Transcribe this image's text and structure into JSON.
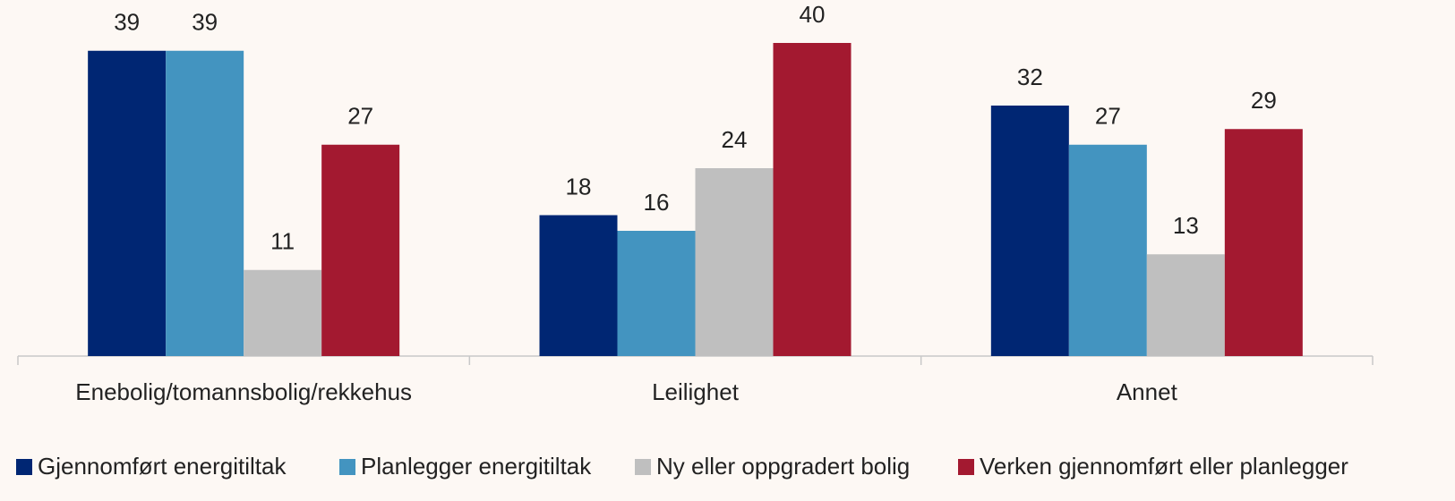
{
  "chart_data": {
    "type": "bar",
    "categories": [
      "Enebolig/tomannsbolig/rekkehus",
      "Leilighet",
      "Annet"
    ],
    "series": [
      {
        "name": "Gjennomført energitiltak",
        "color": "#002673",
        "values": [
          39,
          18,
          32
        ]
      },
      {
        "name": "Planlegger energitiltak",
        "color": "#4394c0",
        "values": [
          39,
          16,
          27
        ]
      },
      {
        "name": "Ny eller oppgradert bolig",
        "color": "#bfbfbf",
        "values": [
          11,
          24,
          13
        ]
      },
      {
        "name": "Verken gjennomført eller planlegger",
        "color": "#a31930",
        "values": [
          27,
          40,
          29
        ]
      }
    ],
    "legend": "bottom"
  }
}
